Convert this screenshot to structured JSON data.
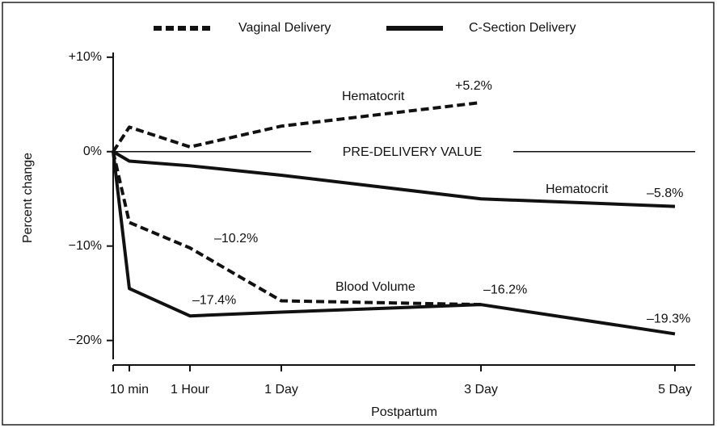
{
  "chart_data": {
    "type": "line",
    "x_label": "Postpartum",
    "y_label": "Percent change",
    "categories": [
      null,
      "10 min",
      "1 Hour",
      "1 Day",
      "3 Day",
      "5 Day"
    ],
    "ylim": [
      -22,
      10.5
    ],
    "yticks": [
      {
        "value": 10,
        "label": "+10%"
      },
      {
        "value": 0,
        "label": "0%"
      },
      {
        "value": -10,
        "label": "−10%"
      },
      {
        "value": -20,
        "label": "−20%"
      }
    ],
    "reference": {
      "value": 0,
      "label": "PRE-DELIVERY VALUE"
    },
    "legend": [
      {
        "name": "Vaginal Delivery",
        "style": "dashed"
      },
      {
        "name": "C-Section Delivery",
        "style": "solid"
      }
    ],
    "color": "#111111",
    "series": [
      {
        "legend_index": 0,
        "label": "Hematocrit",
        "values": [
          0,
          2.6,
          0.5,
          2.7,
          5.2,
          null
        ],
        "value_labels": [
          null,
          null,
          null,
          null,
          "+5.2%",
          null
        ]
      },
      {
        "legend_index": 0,
        "values": [
          0,
          -7.5,
          -10.2,
          -15.8,
          -16.2,
          null
        ],
        "value_labels": [
          null,
          null,
          "–10.2%",
          null,
          null,
          null
        ]
      },
      {
        "legend_index": 1,
        "label": "Hematocrit",
        "values": [
          0,
          -1,
          -1.5,
          -2.5,
          -5,
          -5.8
        ],
        "value_labels": [
          null,
          null,
          null,
          null,
          null,
          "–5.8%"
        ]
      },
      {
        "legend_index": 1,
        "label": "Blood Volume",
        "values": [
          0,
          -14.5,
          -17.4,
          -17,
          -16.2,
          -19.3
        ],
        "value_labels": [
          null,
          null,
          "–17.4%",
          null,
          "–16.2%",
          "–19.3%"
        ]
      }
    ]
  }
}
